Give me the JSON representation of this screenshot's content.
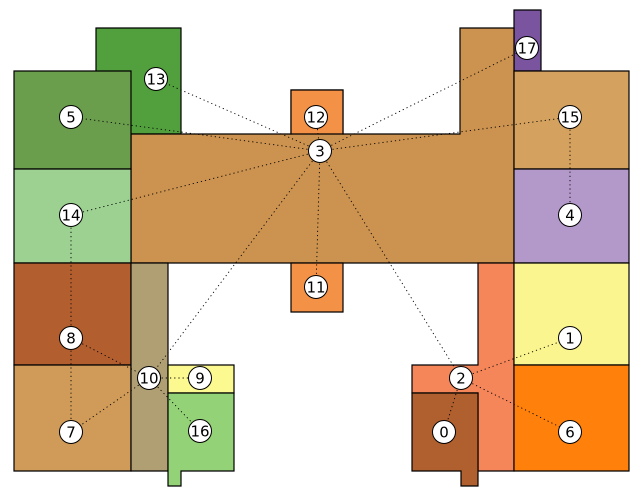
{
  "rooms": [
    {
      "id": "0",
      "label": "0",
      "color": "#b05f2e"
    },
    {
      "id": "1",
      "label": "1",
      "color": "#fbf58f"
    },
    {
      "id": "2",
      "label": "2",
      "color": "#f4865a"
    },
    {
      "id": "3",
      "label": "3",
      "color": "#cc924f"
    },
    {
      "id": "4",
      "label": "4",
      "color": "#b399c9"
    },
    {
      "id": "5",
      "label": "5",
      "color": "#6a9e4d"
    },
    {
      "id": "6",
      "label": "6",
      "color": "#ff810c"
    },
    {
      "id": "7",
      "label": "7",
      "color": "#d09b58"
    },
    {
      "id": "8",
      "label": "8",
      "color": "#b35e2e"
    },
    {
      "id": "9",
      "label": "9",
      "color": "#fbf98f"
    },
    {
      "id": "10",
      "label": "10",
      "color": "#b19f74"
    },
    {
      "id": "11",
      "label": "11",
      "color": "#f39147"
    },
    {
      "id": "12",
      "label": "12",
      "color": "#f39147"
    },
    {
      "id": "13",
      "label": "13",
      "color": "#52a03d"
    },
    {
      "id": "14",
      "label": "14",
      "color": "#9dd191"
    },
    {
      "id": "15",
      "label": "15",
      "color": "#d4a15f"
    },
    {
      "id": "16",
      "label": "16",
      "color": "#94d277"
    },
    {
      "id": "17",
      "label": "17",
      "color": "#7b54a0"
    }
  ],
  "connections": [
    [
      "3",
      "13"
    ],
    [
      "3",
      "5"
    ],
    [
      "3",
      "12"
    ],
    [
      "3",
      "17"
    ],
    [
      "3",
      "15"
    ],
    [
      "3",
      "14"
    ],
    [
      "3",
      "11"
    ],
    [
      "3",
      "10"
    ],
    [
      "3",
      "2"
    ],
    [
      "14",
      "8"
    ],
    [
      "8",
      "7"
    ],
    [
      "8",
      "10"
    ],
    [
      "10",
      "7"
    ],
    [
      "10",
      "9"
    ],
    [
      "10",
      "16"
    ],
    [
      "2",
      "1"
    ],
    [
      "2",
      "0"
    ],
    [
      "2",
      "6"
    ],
    [
      "15",
      "4"
    ]
  ]
}
